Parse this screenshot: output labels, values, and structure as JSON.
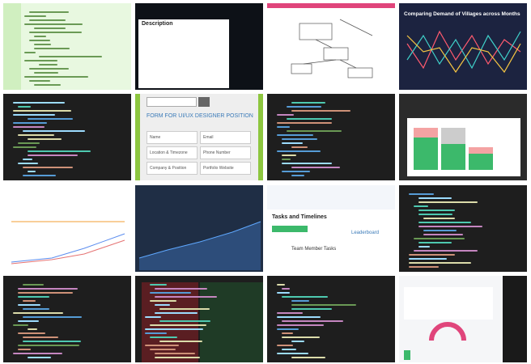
{
  "tiles": {
    "issue": {
      "heading": "Description"
    },
    "chart": {
      "title": "Comparing Demand of Villages across Months"
    },
    "form": {
      "title": "FORM FOR UI/UX DESIGNER POSITION",
      "fields": [
        "Name",
        "Email",
        "Location & Timezone",
        "Phone Number",
        "Company & Position",
        "Portfolio Website"
      ]
    },
    "dashboard": {
      "title": "Tasks and Timelines",
      "subtitle": "Team Member Tasks",
      "leaderboard": "Leaderboard"
    }
  }
}
